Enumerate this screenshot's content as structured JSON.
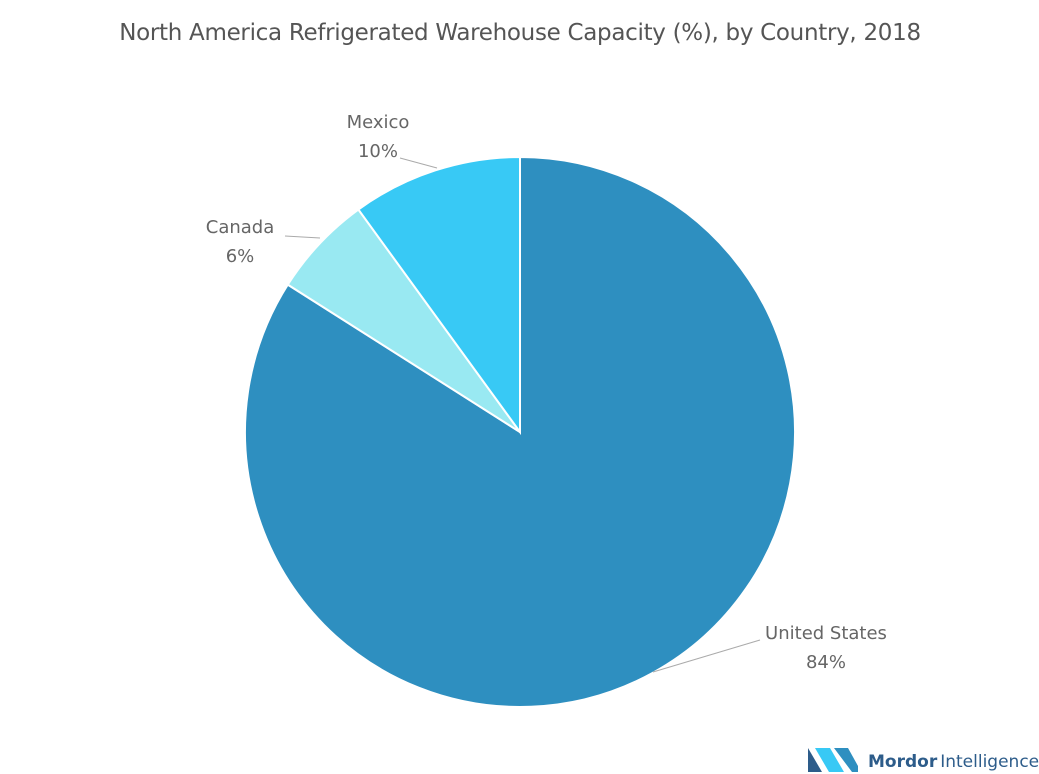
{
  "chart_data": {
    "type": "pie",
    "title": "North America Refrigerated Warehouse Capacity (%), by Country, 2018",
    "categories": [
      "United States",
      "Canada",
      "Mexico"
    ],
    "values": [
      84,
      6,
      10
    ],
    "value_labels": [
      "84%",
      "6%",
      "10%"
    ],
    "colors": [
      "#2e8fc0",
      "#99e9f2",
      "#38c9f5"
    ]
  },
  "logo": {
    "brand": "Mordor",
    "suffix": "Intelligence"
  }
}
